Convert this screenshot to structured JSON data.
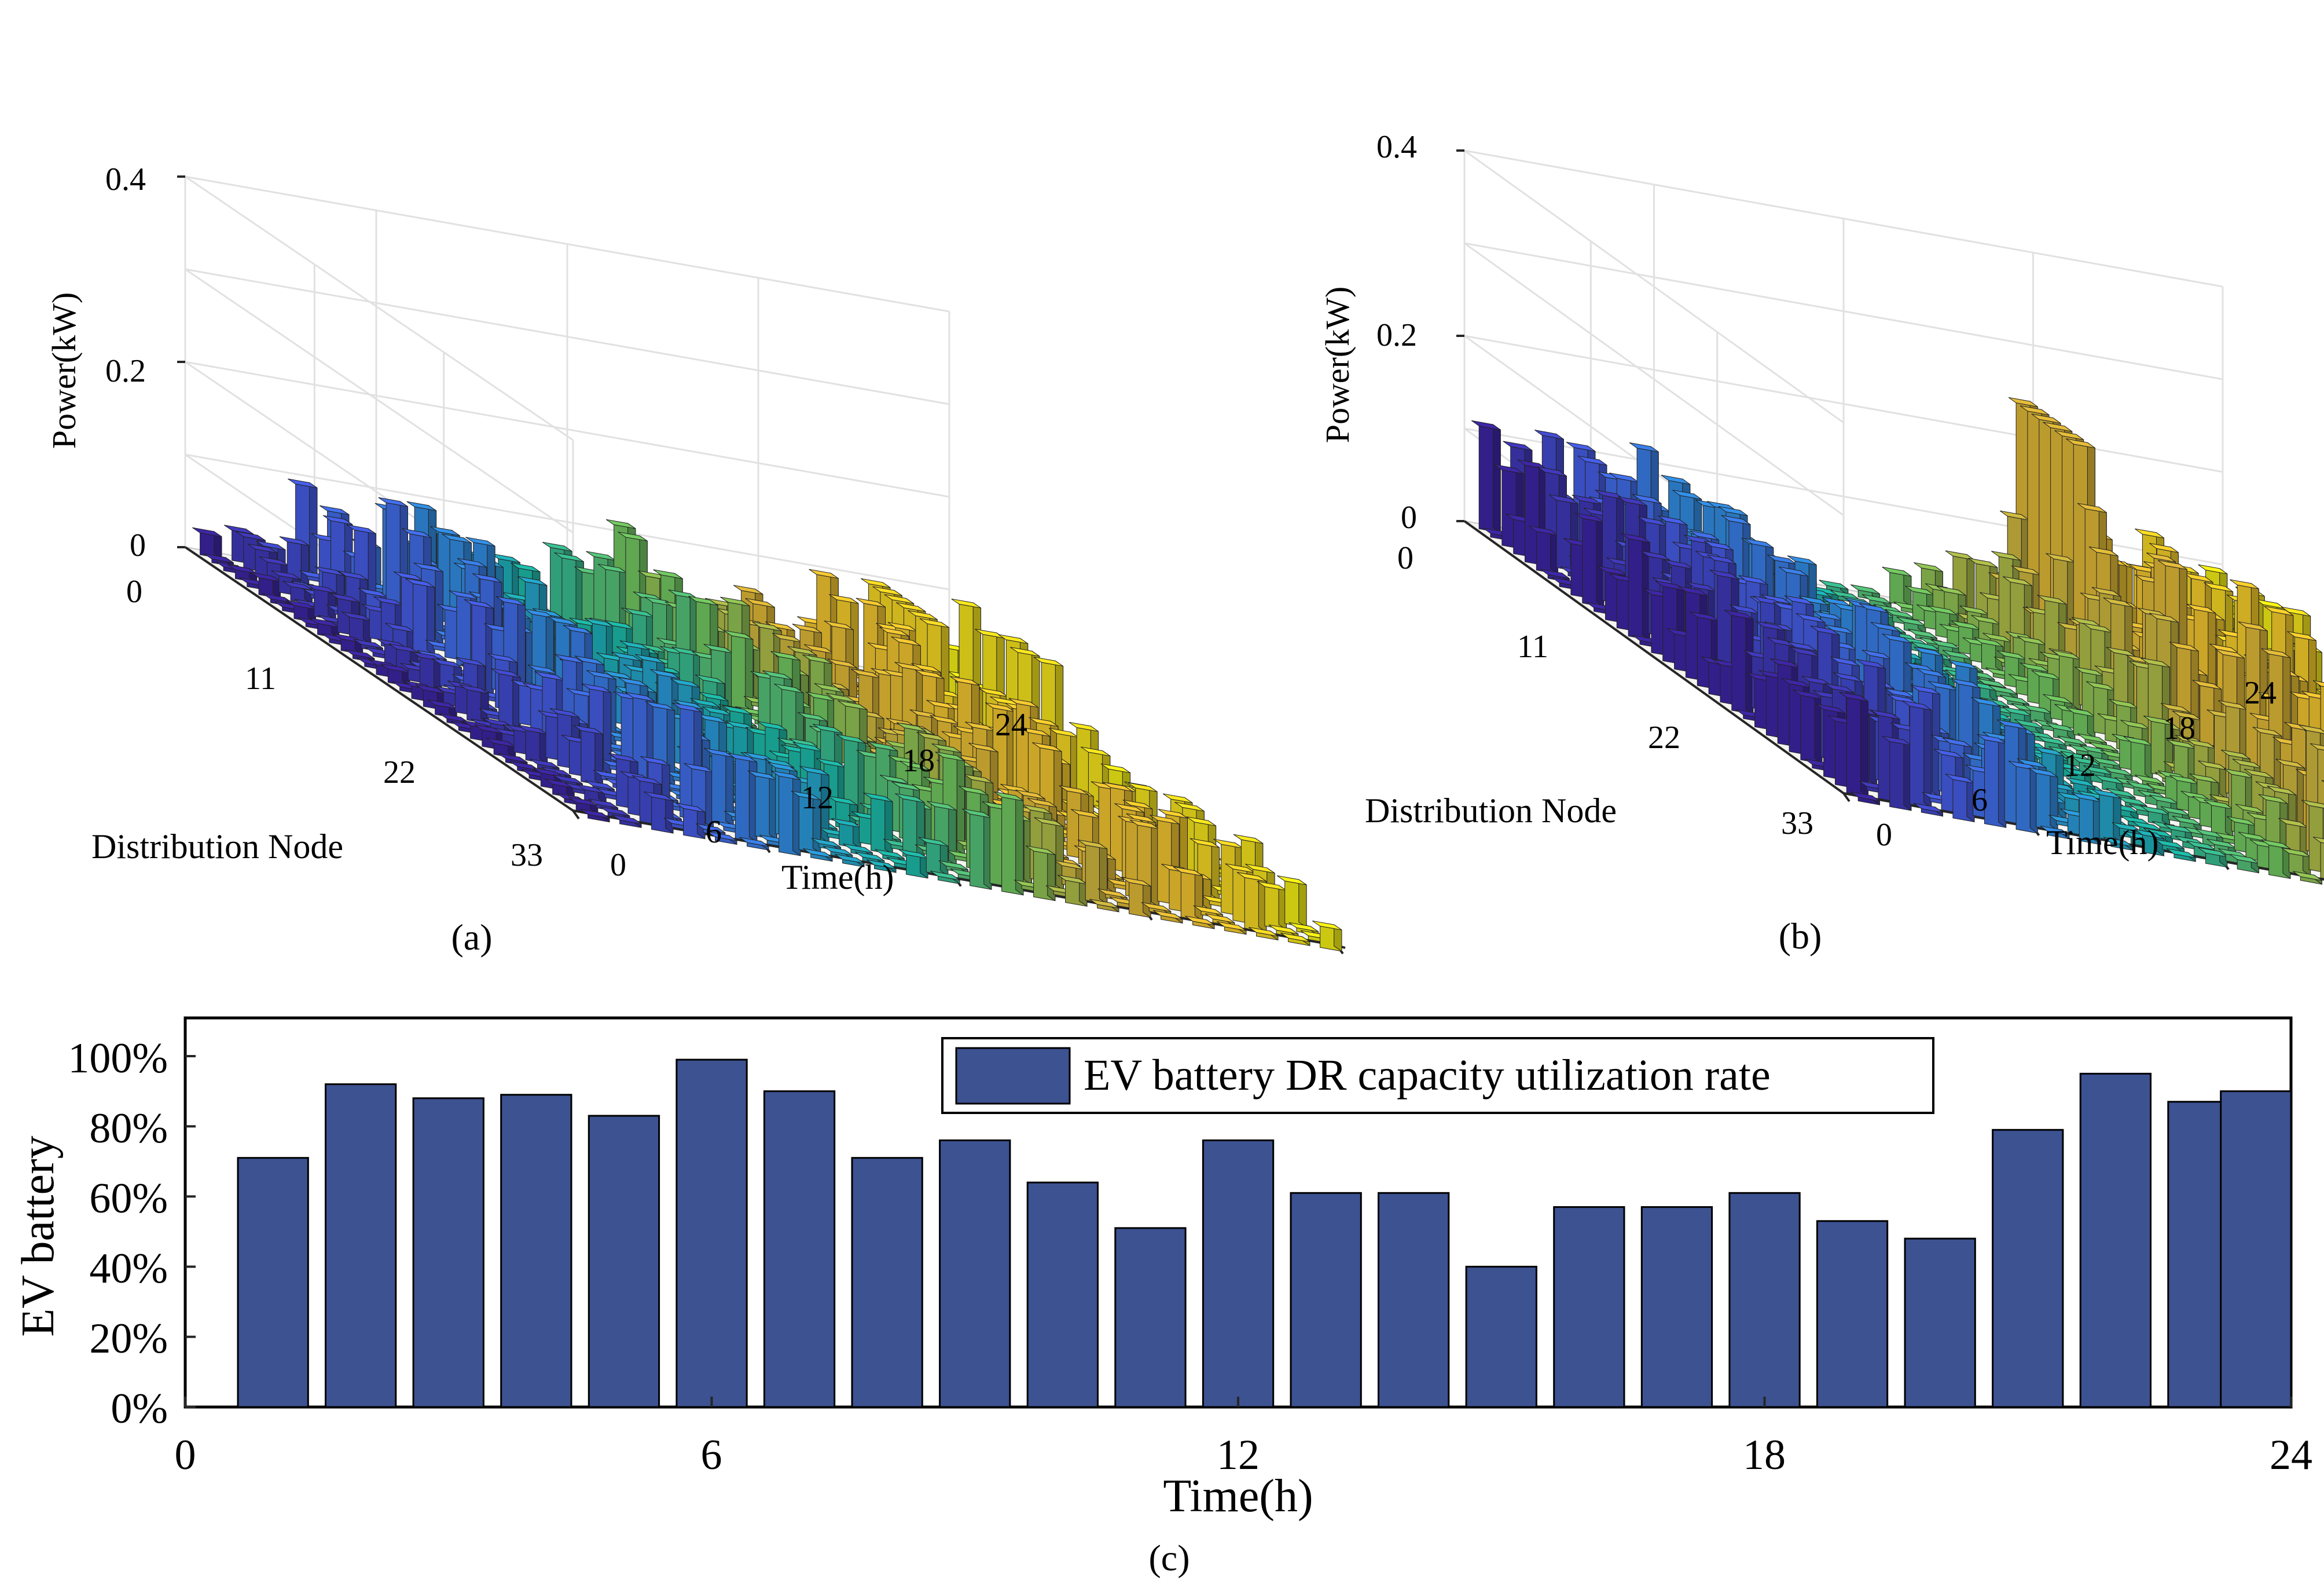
{
  "colors": {
    "bar_c": "#3c5291",
    "viridis_stops": [
      "#3e26a8",
      "#4764f0",
      "#2f99e6",
      "#19bdaf",
      "#78cc5f",
      "#e0b93a",
      "#fcce2e",
      "#f9f415"
    ]
  },
  "chart_data": [
    {
      "panel": "a",
      "type": "bar3d",
      "caption": "(a)",
      "zlabel": "Power(kW)",
      "xlabel": "Time(h)",
      "ylabel": "Distribution Node",
      "z_ticks": [
        "0",
        "0.2",
        "0.4"
      ],
      "t_ticks": [
        "0",
        "6",
        "12",
        "18",
        "24"
      ],
      "n_ticks": [
        "0",
        "11",
        "22",
        "33"
      ],
      "zlim": [
        0,
        0.4
      ],
      "tlim": [
        0,
        24
      ],
      "nlim": [
        0,
        33
      ],
      "approx_heights_by_hour_kW": [
        0.02,
        0.03,
        0.05,
        0.08,
        0.1,
        0.1,
        0.09,
        0.07,
        0.06,
        0.05,
        0.05,
        0.07,
        0.08,
        0.09,
        0.08,
        0.06,
        0.05,
        0.06,
        0.07,
        0.09,
        0.07,
        0.06,
        0.1,
        0.04
      ]
    },
    {
      "panel": "b",
      "type": "bar3d",
      "caption": "(b)",
      "zlabel": "Power(kW)",
      "xlabel": "Time(h)",
      "ylabel": "Distribution Node",
      "z_ticks": [
        "0",
        "0.2",
        "0.4"
      ],
      "t_ticks": [
        "0",
        "6",
        "12",
        "18",
        "24"
      ],
      "n_ticks": [
        "0",
        "11",
        "22",
        "33"
      ],
      "zlim": [
        0,
        0.4
      ],
      "tlim": [
        0,
        24
      ],
      "nlim": [
        0,
        33
      ],
      "approx_heights_by_hour_kW": [
        0.09,
        0.1,
        0.1,
        0.09,
        0.08,
        0.1,
        0.09,
        0.05,
        0.04,
        0.02,
        0.01,
        0.01,
        0.01,
        0.03,
        0.05,
        0.08,
        0.11,
        0.15,
        0.13,
        0.12,
        0.14,
        0.1,
        0.12,
        0.1
      ]
    },
    {
      "panel": "c",
      "type": "bar",
      "caption": "(c)",
      "xlabel": "Time(h)",
      "ylabel": "EV battery",
      "legend": "EV battery DR capacity utilization rate",
      "legend_position": "top-right",
      "x": [
        1,
        2,
        3,
        4,
        5,
        6,
        7,
        8,
        9,
        10,
        11,
        12,
        13,
        14,
        15,
        16,
        17,
        18,
        19,
        20,
        21,
        22,
        23,
        24
      ],
      "values": [
        71,
        92,
        88,
        89,
        83,
        99,
        90,
        71,
        76,
        64,
        51,
        76,
        61,
        61,
        40,
        57,
        57,
        61,
        53,
        48,
        79,
        95,
        87,
        90
      ],
      "xlim": [
        0,
        24
      ],
      "ylim": [
        0,
        100
      ],
      "x_ticks": [
        "0",
        "6",
        "12",
        "18",
        "24"
      ],
      "y_ticks": [
        "0%",
        "20%",
        "40%",
        "60%",
        "80%",
        "100%"
      ]
    }
  ]
}
